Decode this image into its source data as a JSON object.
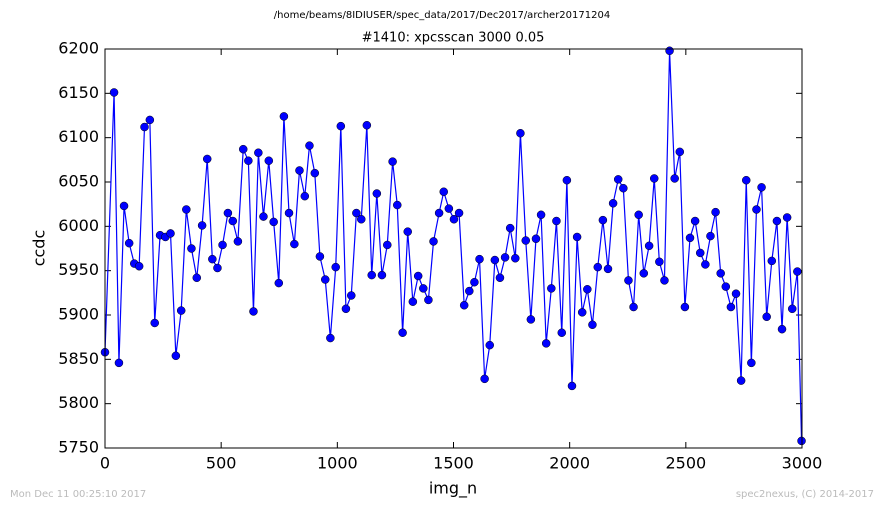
{
  "chart_data": {
    "type": "line",
    "suptitle": "/home/beams/8IDIUSER/spec_data/2017/Dec2017/archer20171204",
    "title": "#1410: xpcsscan 3000 0.05",
    "xlabel": "img_n",
    "ylabel": "ccdc",
    "footer_left": "Mon Dec 11 00:25:10 2017",
    "footer_right": "spec2nexus, (C) 2014-2017",
    "x": [
      0,
      39,
      60,
      82,
      104,
      126,
      147,
      170,
      193,
      214,
      237,
      260,
      282,
      305,
      328,
      350,
      372,
      395,
      418,
      440,
      462,
      484,
      506,
      529,
      550,
      572,
      595,
      617,
      639,
      660,
      682,
      705,
      726,
      748,
      770,
      792,
      815,
      837,
      860,
      880,
      903,
      925,
      948,
      970,
      993,
      1015,
      1037,
      1060,
      1082,
      1103,
      1127,
      1148,
      1170,
      1192,
      1215,
      1238,
      1258,
      1281,
      1303,
      1325,
      1348,
      1370,
      1392,
      1414,
      1438,
      1458,
      1480,
      1502,
      1524,
      1546,
      1568,
      1590,
      1612,
      1634,
      1656,
      1678,
      1700,
      1722,
      1744,
      1766,
      1788,
      1811,
      1833,
      1855,
      1877,
      1899,
      1921,
      1943,
      1966,
      1988,
      2010,
      2032,
      2054,
      2076,
      2098,
      2121,
      2143,
      2165,
      2187,
      2209,
      2231,
      2253,
      2275,
      2297,
      2319,
      2342,
      2364,
      2386,
      2408,
      2430,
      2452,
      2474,
      2496,
      2518,
      2540,
      2562,
      2584,
      2606,
      2628,
      2650,
      2672,
      2694,
      2716,
      2738,
      2760,
      2782,
      2804,
      2826,
      2848,
      2870,
      2892,
      2914,
      2936,
      2958,
      2980,
      2998
    ],
    "series": [
      {
        "color": "#0000ff",
        "values": [
          5858,
          6151,
          5846,
          6023,
          5981,
          5958,
          5955,
          6112,
          6120,
          5891,
          5990,
          5988,
          5992,
          5854,
          5905,
          6019,
          5975,
          5942,
          6001,
          6076,
          5963,
          5953,
          5979,
          6015,
          6006,
          5983,
          6087,
          6074,
          5904,
          6083,
          6011,
          6074,
          6005,
          5936,
          6124,
          6015,
          5980,
          6063,
          6034,
          6091,
          6060,
          5966,
          5940,
          5874,
          5954,
          6113,
          5907,
          5922,
          6015,
          6008,
          6114,
          5945,
          6037,
          5945,
          5979,
          6073,
          6024,
          5880,
          5994,
          5915,
          5944,
          5930,
          5917,
          5983,
          6015,
          6039,
          6020,
          6008,
          6015,
          5911,
          5927,
          5937,
          5963,
          5828,
          5866,
          5962,
          5942,
          5965,
          5998,
          5964,
          6105,
          5984,
          5895,
          5986,
          6013,
          5868,
          5930,
          6006,
          5880,
          6052,
          5820,
          5988,
          5903,
          5929,
          5889,
          5954,
          6007,
          5952,
          6026,
          6053,
          6043,
          5939,
          5909,
          6013,
          5947,
          5978,
          6054,
          5960,
          5939,
          6198,
          6054,
          6084,
          5909,
          5987,
          6006,
          5970,
          5957,
          5989,
          6016,
          5947,
          5932,
          5909,
          5924,
          5826,
          6052,
          5846,
          6019,
          6044,
          5898,
          5961,
          6006,
          5884,
          6010,
          5907,
          5949,
          5758
        ]
      }
    ],
    "xlim": [
      0,
      3000
    ],
    "xticks": [
      0,
      500,
      1000,
      1500,
      2000,
      2500,
      3000
    ],
    "ylim": [
      5750,
      6200
    ],
    "yticks": [
      5750,
      5800,
      5850,
      5900,
      5950,
      6000,
      6050,
      6100,
      6150,
      6200
    ]
  }
}
